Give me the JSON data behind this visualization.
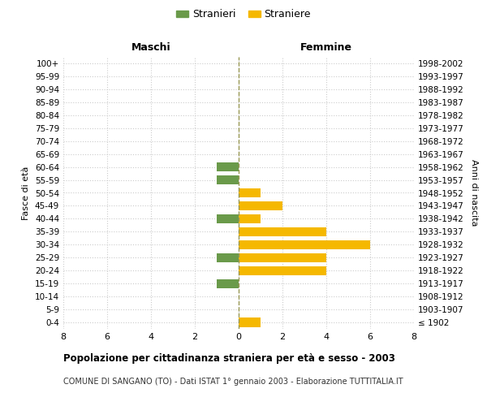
{
  "age_groups": [
    "100+",
    "95-99",
    "90-94",
    "85-89",
    "80-84",
    "75-79",
    "70-74",
    "65-69",
    "60-64",
    "55-59",
    "50-54",
    "45-49",
    "40-44",
    "35-39",
    "30-34",
    "25-29",
    "20-24",
    "15-19",
    "10-14",
    "5-9",
    "0-4"
  ],
  "birth_years": [
    "≤ 1902",
    "1903-1907",
    "1908-1912",
    "1913-1917",
    "1918-1922",
    "1923-1927",
    "1928-1932",
    "1933-1937",
    "1938-1942",
    "1943-1947",
    "1948-1952",
    "1953-1957",
    "1958-1962",
    "1963-1967",
    "1968-1972",
    "1973-1977",
    "1978-1982",
    "1983-1987",
    "1988-1992",
    "1993-1997",
    "1998-2002"
  ],
  "maschi": [
    0,
    0,
    0,
    0,
    0,
    0,
    0,
    0,
    1,
    1,
    0,
    0,
    1,
    0,
    0,
    1,
    0,
    1,
    0,
    0,
    0
  ],
  "femmine": [
    0,
    0,
    0,
    0,
    0,
    0,
    0,
    0,
    0,
    0,
    1,
    2,
    1,
    4,
    6,
    4,
    4,
    0,
    0,
    0,
    1
  ],
  "color_maschi": "#6a9a4a",
  "color_femmine": "#f5b800",
  "title": "Popolazione per cittadinanza straniera per età e sesso - 2003",
  "subtitle": "COMUNE DI SANGANO (TO) - Dati ISTAT 1° gennaio 2003 - Elaborazione TUTTITALIA.IT",
  "xlabel_maschi": "Maschi",
  "xlabel_femmine": "Femmine",
  "ylabel_left": "Fasce di età",
  "ylabel_right": "Anni di nascita",
  "legend_maschi": "Stranieri",
  "legend_femmine": "Straniere",
  "xlim": 8,
  "background_color": "#ffffff",
  "grid_color": "#cccccc"
}
